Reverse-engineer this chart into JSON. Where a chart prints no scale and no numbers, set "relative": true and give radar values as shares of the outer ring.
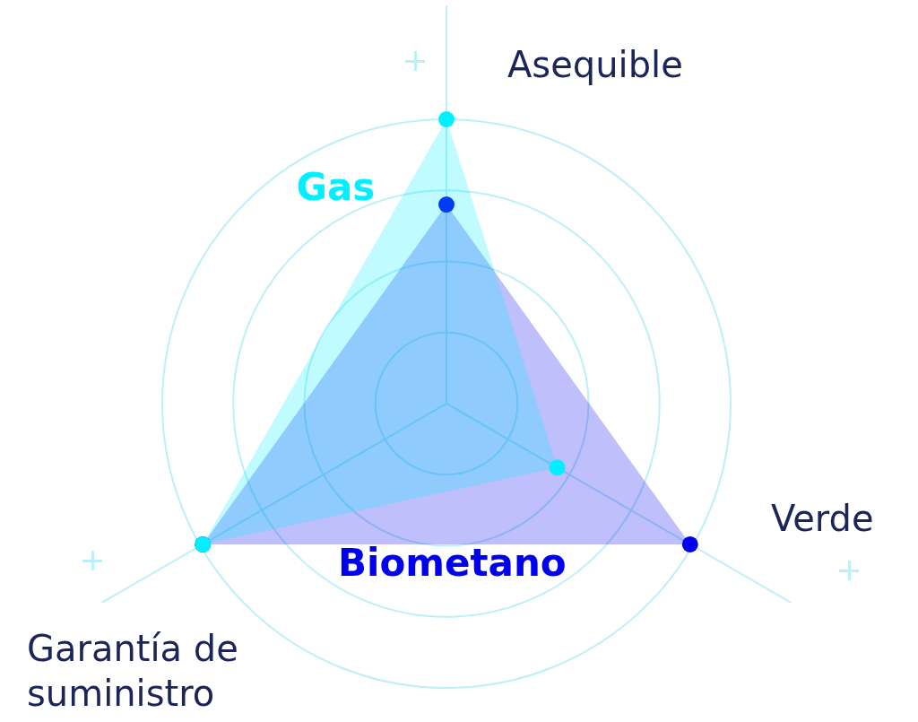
{
  "chart_data": {
    "type": "radar",
    "categories": [
      "Asequible",
      "Verde",
      "Garantía de suministro"
    ],
    "series": [
      {
        "name": "Gas",
        "color": "#00f0ff",
        "values": [
          1,
          0.45,
          0.99
        ]
      },
      {
        "name": "Biometano",
        "color": "#0000ee",
        "values": [
          0.7,
          0.99,
          0.99
        ]
      }
    ],
    "relative": true,
    "grid": true,
    "legend": false,
    "marker": "circle"
  }
}
